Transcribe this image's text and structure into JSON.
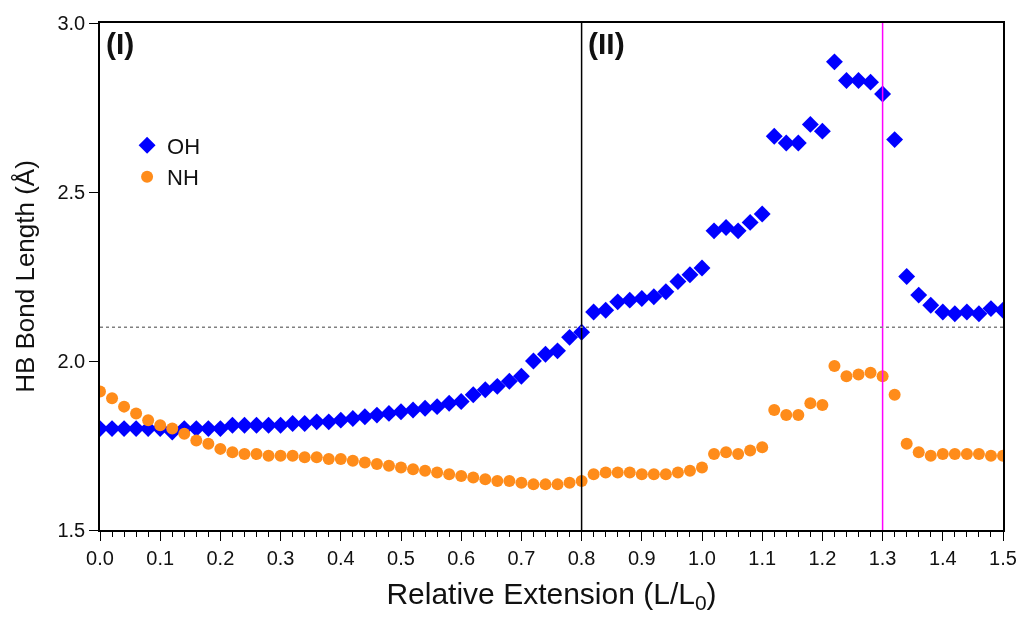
{
  "chart_data": {
    "type": "scatter",
    "xlabel": "Relative Extension (L/L$_{0}$)",
    "ylabel": "HB Bond Length (Å)",
    "x": [
      0.0,
      0.02,
      0.04,
      0.06,
      0.08,
      0.1,
      0.12,
      0.14,
      0.16,
      0.18,
      0.2,
      0.22,
      0.24,
      0.26,
      0.28,
      0.3,
      0.32,
      0.34,
      0.36,
      0.38,
      0.4,
      0.42,
      0.44,
      0.46,
      0.48,
      0.5,
      0.52,
      0.54,
      0.56,
      0.58,
      0.6,
      0.62,
      0.64,
      0.66,
      0.68,
      0.7,
      0.72,
      0.74,
      0.76,
      0.78,
      0.8,
      0.82,
      0.84,
      0.86,
      0.88,
      0.9,
      0.92,
      0.94,
      0.96,
      0.98,
      1.0,
      1.02,
      1.04,
      1.06,
      1.08,
      1.1,
      1.12,
      1.14,
      1.16,
      1.18,
      1.2,
      1.22,
      1.24,
      1.26,
      1.28,
      1.3,
      1.32,
      1.34,
      1.36,
      1.38,
      1.4,
      1.42,
      1.44,
      1.46,
      1.48,
      1.5
    ],
    "series": [
      {
        "name": "OH",
        "color": "#0000ff",
        "marker": "diamond",
        "values": [
          1.8,
          1.8,
          1.8,
          1.8,
          1.8,
          1.8,
          1.79,
          1.8,
          1.8,
          1.8,
          1.8,
          1.81,
          1.81,
          1.81,
          1.81,
          1.81,
          1.815,
          1.815,
          1.82,
          1.82,
          1.825,
          1.83,
          1.835,
          1.84,
          1.845,
          1.85,
          1.855,
          1.86,
          1.865,
          1.875,
          1.88,
          1.9,
          1.915,
          1.925,
          1.94,
          1.955,
          2.0,
          2.02,
          2.03,
          2.07,
          2.085,
          2.145,
          2.15,
          2.175,
          2.18,
          2.185,
          2.19,
          2.205,
          2.235,
          2.255,
          2.275,
          2.385,
          2.395,
          2.385,
          2.41,
          2.435,
          2.665,
          2.645,
          2.645,
          2.7,
          2.68,
          2.885,
          2.83,
          2.83,
          2.825,
          2.79,
          2.655,
          2.25,
          2.195,
          2.165,
          2.145,
          2.14,
          2.145,
          2.14,
          2.155,
          2.15
        ]
      },
      {
        "name": "NH",
        "color": "#ff8c1a",
        "marker": "circle",
        "values": [
          1.91,
          1.89,
          1.865,
          1.845,
          1.825,
          1.81,
          1.8,
          1.785,
          1.765,
          1.755,
          1.74,
          1.73,
          1.725,
          1.725,
          1.72,
          1.72,
          1.72,
          1.715,
          1.715,
          1.71,
          1.71,
          1.705,
          1.7,
          1.695,
          1.69,
          1.685,
          1.68,
          1.675,
          1.67,
          1.665,
          1.66,
          1.655,
          1.65,
          1.645,
          1.645,
          1.64,
          1.635,
          1.635,
          1.635,
          1.64,
          1.645,
          1.665,
          1.67,
          1.67,
          1.67,
          1.665,
          1.665,
          1.665,
          1.67,
          1.675,
          1.685,
          1.725,
          1.73,
          1.725,
          1.735,
          1.745,
          1.855,
          1.84,
          1.84,
          1.875,
          1.87,
          1.985,
          1.955,
          1.96,
          1.965,
          1.955,
          1.9,
          1.755,
          1.73,
          1.72,
          1.725,
          1.725,
          1.725,
          1.725,
          1.72,
          1.72
        ]
      }
    ],
    "xlim": [
      0,
      1.5
    ],
    "xticks": [
      {
        "value": 0,
        "label": "0.0"
      },
      {
        "value": 0.1,
        "label": "0.1"
      },
      {
        "value": 0.2,
        "label": "0.2"
      },
      {
        "value": 0.3,
        "label": "0.3"
      },
      {
        "value": 0.4,
        "label": "0.4"
      },
      {
        "value": 0.5,
        "label": "0.5"
      },
      {
        "value": 0.6,
        "label": "0.6"
      },
      {
        "value": 0.7,
        "label": "0.7"
      },
      {
        "value": 0.8,
        "label": "0.8"
      },
      {
        "value": 0.9,
        "label": "0.9"
      },
      {
        "value": 1.0,
        "label": "1.0"
      },
      {
        "value": 1.1,
        "label": "1.1"
      },
      {
        "value": 1.2,
        "label": "1.2"
      },
      {
        "value": 1.3,
        "label": "1.3"
      },
      {
        "value": 1.4,
        "label": "1.4"
      },
      {
        "value": 1.5,
        "label": "1.5"
      }
    ],
    "ylim": [
      1.5,
      3.0
    ],
    "yticks": [
      1.5,
      {
        "value": 2.0,
        "label": "2.0"
      },
      2.5,
      {
        "value": 3.0,
        "label": "3.0"
      }
    ],
    "ref_lines": [
      {
        "axis": "x",
        "value": 0.8,
        "color": "#000000",
        "line_style": "solid"
      },
      {
        "axis": "x",
        "value": 1.3,
        "color": "#ff00ff",
        "line_style": "solid"
      },
      {
        "axis": "y",
        "value": 2.1,
        "color": "#808080",
        "line_style": "dotted"
      }
    ],
    "annotations": [
      "(I)",
      "(II)"
    ],
    "legend": "top left"
  }
}
